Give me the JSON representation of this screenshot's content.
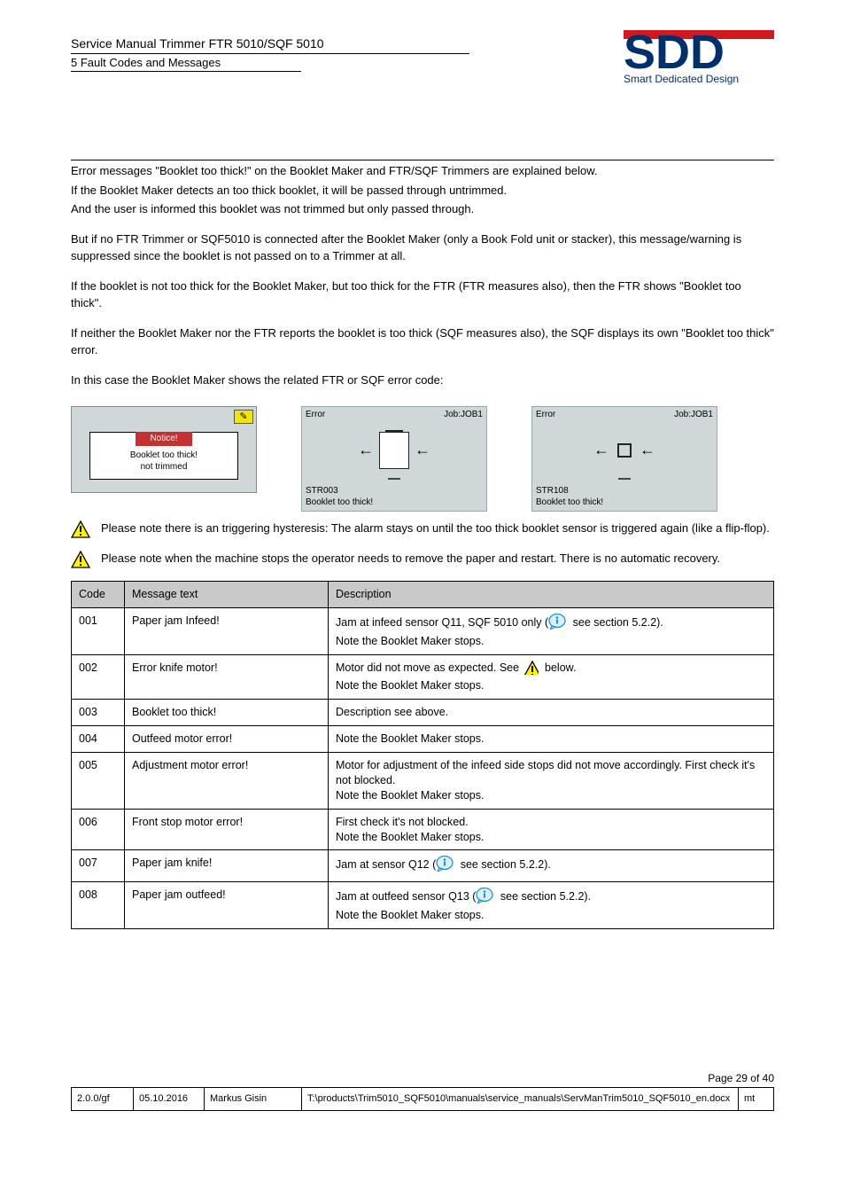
{
  "header": {
    "title_line": "Service Manual Trimmer FTR 5010/SQF 5010",
    "subtitle_line": "5 Fault Codes and Messages",
    "logo_text": "SDD",
    "logo_tagline": "Smart Dedicated Design"
  },
  "body": {
    "p1a": "Error messages \"Booklet too thick!\" on the Booklet Maker and FTR/SQF Trimmers are explained below.",
    "p1b": "If the Booklet Maker detects an too thick booklet, it will be passed through untrimmed.",
    "p1c": "And the user is informed this booklet was not trimmed but only passed through.",
    "p2": "But if no FTR Trimmer or SQF5010 is connected after the Booklet Maker (only a Book Fold unit or stacker), this message/warning is suppressed since the booklet is not passed on to a Trimmer at all.",
    "p3": "If the booklet is not too thick for the Booklet Maker, but too thick for the FTR (FTR measures also), then the FTR shows \"Booklet too thick\".",
    "p4": "If neither the Booklet Maker nor the FTR reports the booklet is too thick (SQF measures also), the SQF displays its own \"Booklet too thick\" error.",
    "p5": "In this case the Booklet Maker shows the related FTR or SQF error code:"
  },
  "screens": {
    "a": {
      "notice": "Notice!",
      "line1": "Booklet too thick!",
      "line2": "not trimmed"
    },
    "b": {
      "left": "Error",
      "right": "Job:JOB1",
      "code": "STR003",
      "msg": "Booklet too thick!"
    },
    "c": {
      "left": "Error",
      "right": "Job:JOB1",
      "code": "STR108",
      "msg": "Booklet too thick!"
    }
  },
  "warn1": "Please note there is an triggering hysteresis: The alarm stays on until the too thick booklet sensor is triggered again (like a flip-flop).",
  "warn2": "Please note when the machine stops the operator needs to remove the paper and restart. There is no automatic recovery.",
  "codes_table": {
    "headers": [
      "Code",
      "Message text",
      "Description"
    ],
    "rows": [
      {
        "code": "001",
        "msg": "Paper jam Infeed!",
        "desc_pre": "Jam at infeed sensor Q11, SQF 5010 only (",
        "icon": "info",
        "desc_post": " see section 5.2.2).\nNote the Booklet Maker stops."
      },
      {
        "code": "002",
        "msg": "Error knife motor!",
        "desc_pre": "Motor did not move as expected. See ",
        "icon": "warn",
        "desc_post": " below.\nNote the Booklet Maker stops."
      },
      {
        "code": "003",
        "msg": "Booklet too thick!",
        "desc": "Description see above."
      },
      {
        "code": "004",
        "msg": "Outfeed motor error!",
        "desc": "Note the Booklet Maker stops."
      },
      {
        "code": "005",
        "msg": "Adjustment motor error!",
        "desc": "Motor for adjustment of the infeed side stops did not move accordingly. First check it's not blocked.\nNote the Booklet Maker stops."
      },
      {
        "code": "006",
        "msg": "Front stop motor error!",
        "desc": "First check it's not blocked.\nNote the Booklet Maker stops."
      },
      {
        "code": "007",
        "msg": "Paper jam knife!",
        "desc_pre": "Jam at sensor Q12 (",
        "icon": "info",
        "desc_post": " see section 5.2.2)."
      },
      {
        "code": "008",
        "msg": "Paper jam outfeed!",
        "desc_pre": "Jam at outfeed sensor Q13 (",
        "icon": "info",
        "desc_post": " see section 5.2.2).\nNote the Booklet Maker stops."
      }
    ]
  },
  "footer": {
    "page_label": "Page 29 of 40",
    "rev": {
      "c1": "2.0.0/gf",
      "c2": "05.10.2016",
      "c3": "Markus Gisin",
      "c4": "T:\\products\\Trim5010_SQF5010\\manuals\\service_manuals\\ServManTrim5010_SQF5010_en.docx",
      "c5": "mt"
    }
  },
  "styling": {
    "brand_red": "#d3171e",
    "brand_blue": "#002f6e",
    "table_header_bg": "#c9c9c9",
    "screen_bg": "#cfd7d8",
    "warn_yellow": "#fff200",
    "info_blue": "#1e90d8",
    "notice_red": "#c73030"
  }
}
